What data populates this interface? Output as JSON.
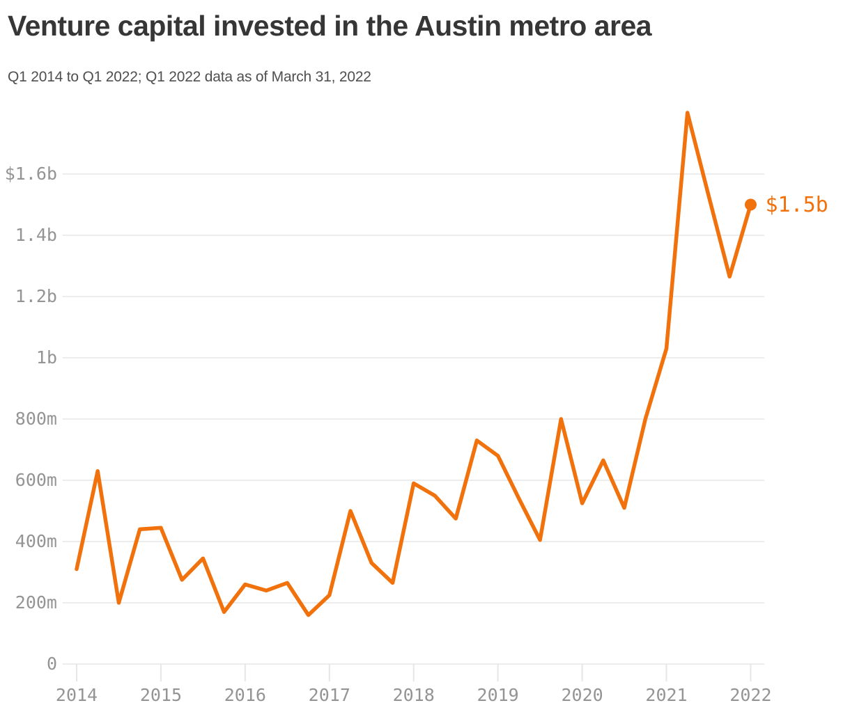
{
  "header": {
    "title": "Venture capital invested in the Austin metro area",
    "subtitle": "Q1 2014 to Q1 2022; Q1 2022 data as of March 31, 2022"
  },
  "colors": {
    "accent_orange": "#F1720D",
    "grid_gray": "#E6E6E6",
    "axis_label_gray": "#949494",
    "title_charcoal": "#363636",
    "subtitle_gray": "#4F4F4F",
    "background": "#FFFFFF"
  },
  "chart_data": {
    "type": "line",
    "title": "Venture capital invested in the Austin metro area",
    "subtitle": "Q1 2014 to Q1 2022; Q1 2022 data as of March 31, 2022",
    "unit": "USD millions",
    "x": [
      "Q1 2014",
      "Q2 2014",
      "Q3 2014",
      "Q4 2014",
      "Q1 2015",
      "Q2 2015",
      "Q3 2015",
      "Q4 2015",
      "Q1 2016",
      "Q2 2016",
      "Q3 2016",
      "Q4 2016",
      "Q1 2017",
      "Q2 2017",
      "Q3 2017",
      "Q4 2017",
      "Q1 2018",
      "Q2 2018",
      "Q3 2018",
      "Q4 2018",
      "Q1 2019",
      "Q2 2019",
      "Q3 2019",
      "Q4 2019",
      "Q1 2020",
      "Q2 2020",
      "Q3 2020",
      "Q4 2020",
      "Q1 2021",
      "Q2 2021",
      "Q3 2021",
      "Q4 2021",
      "Q1 2022"
    ],
    "series": [
      {
        "name": "Venture capital invested",
        "values": [
          310,
          630,
          200,
          440,
          445,
          275,
          345,
          170,
          260,
          240,
          265,
          160,
          225,
          500,
          330,
          265,
          590,
          550,
          475,
          730,
          680,
          540,
          405,
          800,
          525,
          665,
          510,
          800,
          1030,
          1800,
          1530,
          1265,
          1500
        ]
      }
    ],
    "y_ticks": [
      {
        "label": "$1.6b",
        "value": 1600
      },
      {
        "label": "1.4b",
        "value": 1400
      },
      {
        "label": "1.2b",
        "value": 1200
      },
      {
        "label": "1b",
        "value": 1000
      },
      {
        "label": "800m",
        "value": 800
      },
      {
        "label": "600m",
        "value": 600
      },
      {
        "label": "400m",
        "value": 400
      },
      {
        "label": "200m",
        "value": 200
      },
      {
        "label": "0",
        "value": 0
      }
    ],
    "x_ticks": [
      {
        "label": "2014",
        "year": 2014
      },
      {
        "label": "2015",
        "year": 2015
      },
      {
        "label": "2016",
        "year": 2016
      },
      {
        "label": "2017",
        "year": 2017
      },
      {
        "label": "2018",
        "year": 2018
      },
      {
        "label": "2019",
        "year": 2019
      },
      {
        "label": "2020",
        "year": 2020
      },
      {
        "label": "2021",
        "year": 2021
      },
      {
        "label": "2022",
        "year": 2022
      }
    ],
    "end_annotation": {
      "label": "$1.5b",
      "x": "Q1 2022",
      "value": 1500
    },
    "ylim": [
      0,
      1900
    ],
    "grid": "horizontal",
    "legend": "none"
  }
}
